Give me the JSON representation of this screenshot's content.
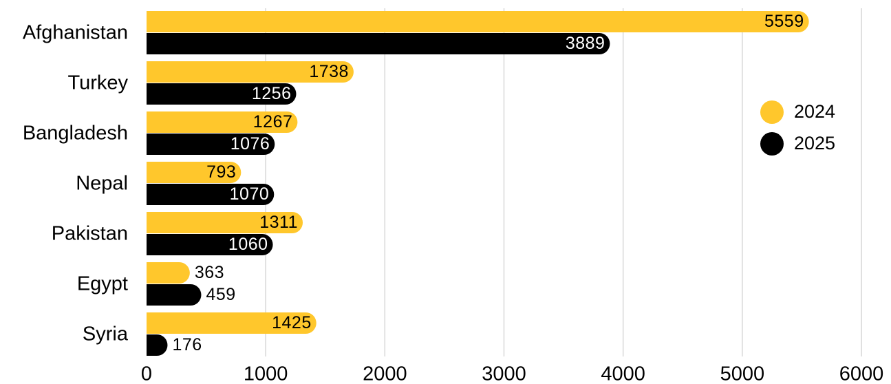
{
  "chart_data": {
    "type": "bar",
    "orientation": "horizontal",
    "categories": [
      "Afghanistan",
      "Turkey",
      "Bangladesh",
      "Nepal",
      "Pakistan",
      "Egypt",
      "Syria"
    ],
    "series": [
      {
        "name": "2024",
        "color": "#FFC72C",
        "values": [
          5559,
          1738,
          1267,
          793,
          1311,
          363,
          1425
        ]
      },
      {
        "name": "2025",
        "color": "#000000",
        "values": [
          3889,
          1256,
          1076,
          1070,
          1060,
          459,
          176
        ]
      }
    ],
    "xlim": [
      0,
      6000
    ],
    "xticks": [
      "0",
      "1000",
      "2000",
      "3000",
      "4000",
      "5000",
      "6000"
    ],
    "grid": "vertical",
    "legend_position": "right"
  }
}
